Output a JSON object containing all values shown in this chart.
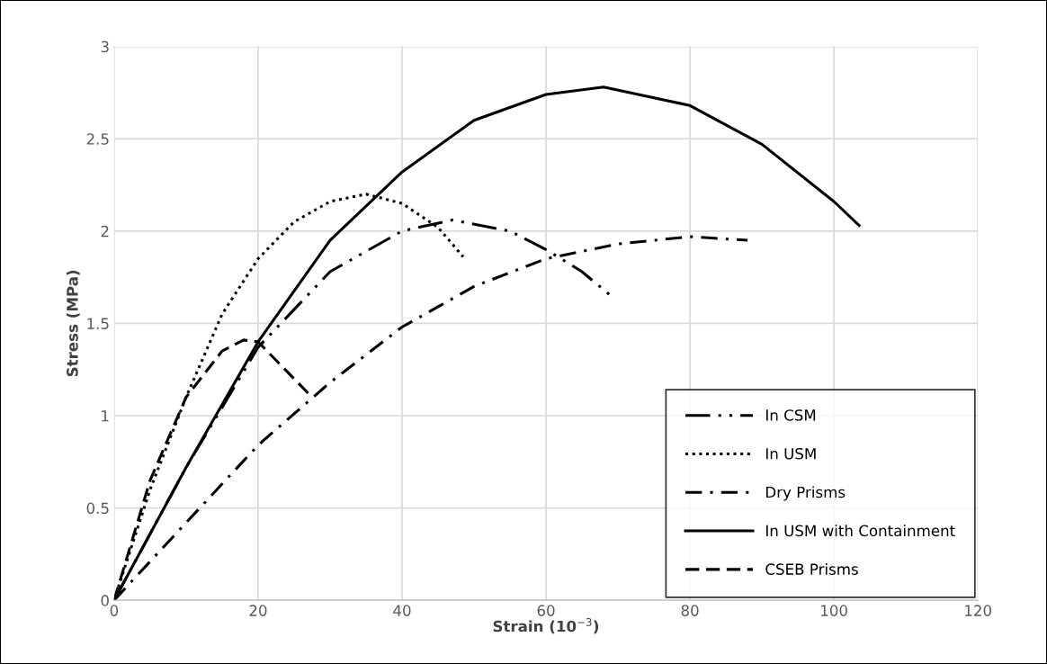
{
  "chart_data": {
    "type": "line",
    "xlabel": "Strain (10$^{−3}$)",
    "ylabel": "Stress (MPa)",
    "xlim": [
      0,
      120
    ],
    "xticks": [
      0,
      20,
      40,
      60,
      80,
      100,
      120
    ],
    "ylim": [
      0,
      3
    ],
    "yticks": [
      0,
      0.5,
      1,
      1.5,
      2,
      2.5,
      3
    ],
    "grid": true,
    "legend": "bottom right",
    "marker": "none",
    "series": [
      {
        "name": "In CSM",
        "color": "#000000",
        "line_style": "dashdotdot",
        "x": [
          0,
          10,
          20,
          30,
          40,
          47,
          55,
          60,
          65,
          69
        ],
        "values": [
          0,
          0.72,
          1.37,
          1.78,
          2.0,
          2.06,
          2.0,
          1.9,
          1.78,
          1.65
        ]
      },
      {
        "name": "In USM",
        "color": "#000000",
        "line_style": "dotted",
        "x": [
          0,
          5,
          10,
          15,
          20,
          25,
          30,
          35,
          40,
          45,
          48.5
        ],
        "values": [
          0,
          0.6,
          1.1,
          1.55,
          1.85,
          2.05,
          2.16,
          2.2,
          2.15,
          2.02,
          1.86
        ]
      },
      {
        "name": "Dry Prisms",
        "color": "#000000",
        "line_style": "dashdot",
        "x": [
          0,
          10,
          20,
          30,
          40,
          50,
          60,
          70,
          80,
          88
        ],
        "values": [
          0,
          0.42,
          0.84,
          1.18,
          1.48,
          1.7,
          1.85,
          1.93,
          1.97,
          1.95
        ]
      },
      {
        "name": "In USM with Containment",
        "color": "#000000",
        "line_style": "solid",
        "x": [
          0,
          10,
          20,
          30,
          40,
          50,
          60,
          68,
          80,
          90,
          100,
          103.5
        ],
        "values": [
          0,
          0.72,
          1.4,
          1.95,
          2.32,
          2.6,
          2.74,
          2.78,
          2.68,
          2.47,
          2.16,
          2.03
        ]
      },
      {
        "name": "CSEB Prisms",
        "color": "#000000",
        "line_style": "dashed",
        "x": [
          0,
          5,
          10,
          15,
          18,
          20,
          23,
          27
        ],
        "values": [
          0,
          0.65,
          1.1,
          1.35,
          1.41,
          1.4,
          1.28,
          1.12
        ]
      }
    ]
  }
}
